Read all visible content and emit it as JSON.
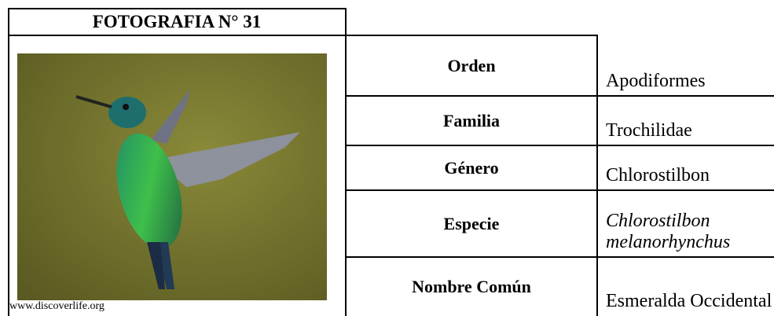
{
  "header": {
    "title": "FOTOGRAFIA N° 31"
  },
  "photo": {
    "caption": "www.discoverlife.org"
  },
  "table": {
    "rows": [
      {
        "label": "Orden",
        "value": "Apodiformes"
      },
      {
        "label": "Familia",
        "value": "Trochilidae"
      },
      {
        "label": "Género",
        "value": "Chlorostilbon"
      },
      {
        "label": "Especie",
        "value": "Chlorostilbon melanorhynchus"
      },
      {
        "label": "Nombre Común",
        "value": "Esmeralda Occidental"
      }
    ]
  }
}
